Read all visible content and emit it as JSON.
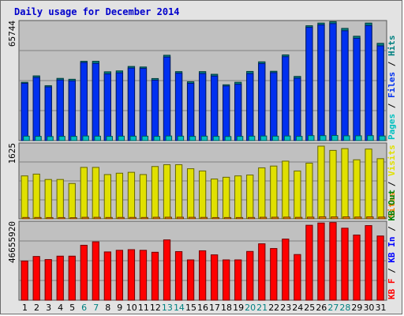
{
  "chart_data": {
    "type": "bar",
    "title": "Daily usage for December 2014",
    "categories": [
      "1",
      "2",
      "3",
      "4",
      "5",
      "6",
      "7",
      "8",
      "9",
      "10",
      "11",
      "12",
      "13",
      "14",
      "15",
      "16",
      "17",
      "18",
      "19",
      "20",
      "21",
      "22",
      "23",
      "24",
      "25",
      "26",
      "27",
      "28",
      "29",
      "30",
      "31"
    ],
    "weekend_days": [
      "6",
      "7",
      "13",
      "14",
      "20",
      "21",
      "27",
      "28"
    ],
    "grid": true,
    "legend_placement": "right, vertical",
    "colors": {
      "pages": "#00c0c0",
      "files": "#0030f0",
      "hits": "#008080",
      "visits": "#e0e000",
      "sites": "#f08000",
      "kbytes_in": "#0000ff",
      "kbytes_out": "#008000",
      "kbytes": "#ff0000",
      "tick_weekday": "#000000",
      "tick_weekend": "#008080",
      "background": "#c0c0c0",
      "gridline": "#808080"
    },
    "panels": [
      {
        "id": "hits-files-pages",
        "ymax_label": "65744",
        "ylim": [
          0,
          65744
        ],
        "legend": [
          "Pages",
          "Files",
          "Hits"
        ],
        "series": [
          {
            "name": "Hits",
            "values": [
              32800,
              36400,
              30900,
              35000,
              34500,
              44600,
              44600,
              38700,
              39200,
              41700,
              41400,
              34900,
              48000,
              38800,
              33100,
              38800,
              37300,
              31400,
              32800,
              38900,
              44300,
              39000,
              48200,
              36100,
              64600,
              66100,
              66900,
              63100,
              58700,
              66100,
              54700
            ]
          },
          {
            "name": "Files",
            "values": [
              32200,
              35500,
              30200,
              34100,
              33600,
              43900,
              43400,
              37500,
              38100,
              40800,
              40600,
              34000,
              47000,
              37900,
              32200,
              37700,
              36300,
              30700,
              31700,
              37700,
              43300,
              38200,
              47200,
              35100,
              63700,
              65100,
              65800,
              61800,
              57500,
              64700,
              53300
            ]
          },
          {
            "name": "Pages",
            "values": [
              2500,
              2400,
              2300,
              2400,
              2400,
              2600,
              2500,
              2400,
              2500,
              2500,
              2500,
              2400,
              2600,
              2500,
              2400,
              2500,
              2400,
              2300,
              2400,
              2500,
              2600,
              2500,
              2600,
              2400,
              2800,
              2800,
              2900,
              2700,
              2700,
              2800,
              2600
            ]
          }
        ]
      },
      {
        "id": "sites-visits",
        "ymax_label": "1625",
        "ylim": [
          0,
          1625
        ],
        "legend": [
          "Sites",
          "Visits"
        ],
        "series": [
          {
            "name": "Visits",
            "values": [
              960,
              1000,
              880,
              880,
              790,
              1150,
              1150,
              990,
              1020,
              1040,
              990,
              1170,
              1210,
              1210,
              1120,
              1070,
              890,
              930,
              960,
              980,
              1140,
              1180,
              1290,
              1070,
              1245,
              1625,
              1530,
              1570,
              1320,
              1560,
              1345
            ]
          },
          {
            "name": "Sites",
            "values": [
              30,
              30,
              28,
              28,
              25,
              34,
              34,
              30,
              31,
              31,
              30,
              35,
              36,
              36,
              34,
              32,
              28,
              29,
              29,
              30,
              35,
              36,
              38,
              33,
              38,
              45,
              43,
              44,
              40,
              44,
              40
            ]
          }
        ]
      },
      {
        "id": "kbytes",
        "ymax_label": "46655920",
        "ylim": [
          0,
          46655920
        ],
        "legend": [
          "KB F",
          "KB In",
          "KB Out"
        ],
        "series": [
          {
            "name": "KB F",
            "values": [
              24100000,
              26900000,
              25000000,
              27100000,
              27100000,
              33800000,
              35900000,
              29700000,
              30700000,
              31100000,
              30700000,
              29500000,
              37100000,
              29900000,
              24800000,
              30400000,
              27900000,
              24800000,
              24800000,
              30000000,
              34700000,
              31800000,
              37600000,
              28100000,
              46100000,
              47500000,
              47800000,
              44300000,
              40100000,
              45900000,
              39500000
            ]
          },
          {
            "name": "KB In",
            "values": [
              0,
              0,
              0,
              0,
              0,
              0,
              0,
              0,
              0,
              0,
              0,
              0,
              0,
              0,
              0,
              0,
              0,
              0,
              0,
              0,
              0,
              0,
              0,
              0,
              0,
              0,
              0,
              0,
              0,
              0,
              0
            ]
          },
          {
            "name": "KB Out",
            "values": [
              0,
              0,
              0,
              0,
              0,
              0,
              0,
              0,
              0,
              0,
              0,
              0,
              0,
              0,
              0,
              0,
              0,
              0,
              0,
              0,
              0,
              0,
              0,
              0,
              0,
              0,
              0,
              0,
              0,
              0,
              0
            ]
          }
        ]
      }
    ]
  }
}
